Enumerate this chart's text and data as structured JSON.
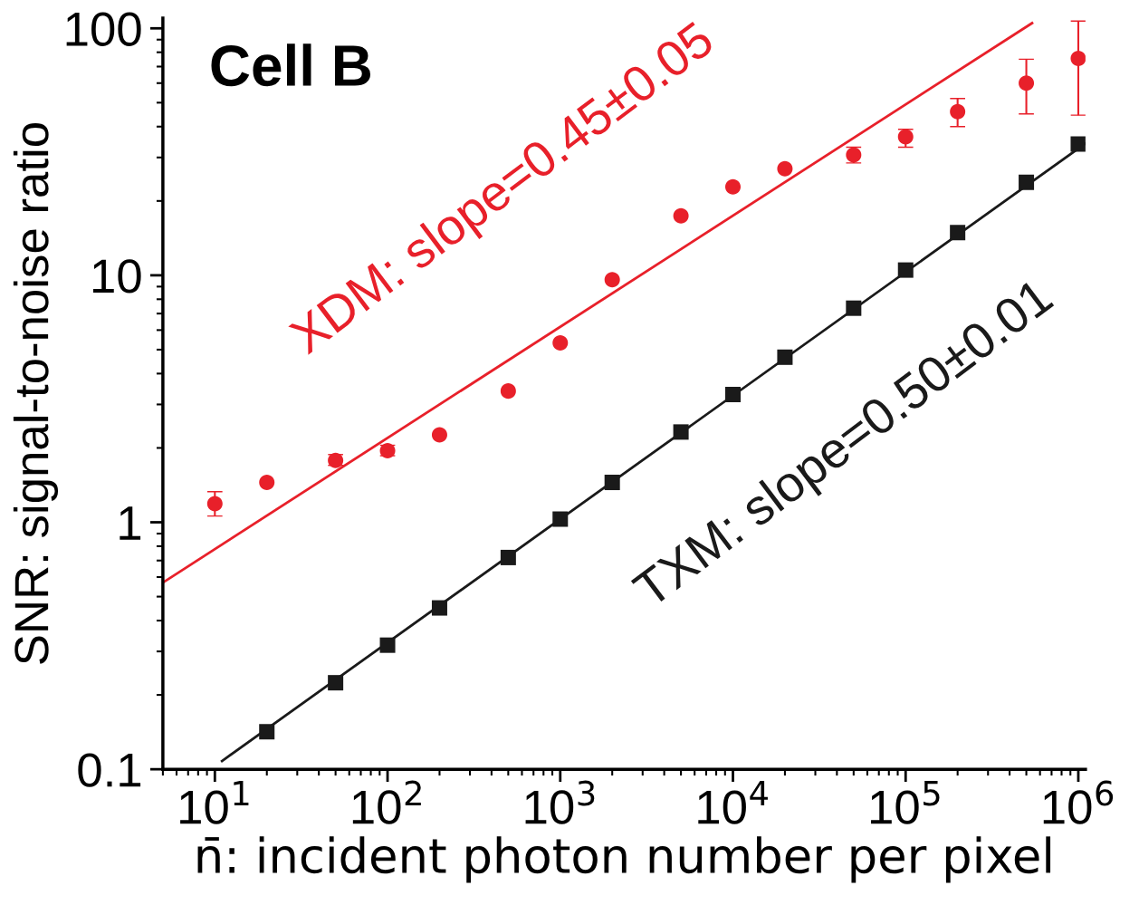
{
  "chart_data": {
    "type": "scatter",
    "log": "xy",
    "xlabel": "n̄: incident photon number per pixel",
    "ylabel": "SNR: signal-to-noise ratio",
    "xlim": [
      5,
      1100000
    ],
    "ylim": [
      0.1,
      110
    ],
    "xticks": [
      {
        "value": 10,
        "label": "10$^{1}$"
      },
      {
        "value": 100,
        "label": "10$^{2}$"
      },
      {
        "value": 1000,
        "label": "10$^{3}$"
      },
      {
        "value": 10000,
        "label": "10$^{4}$"
      },
      {
        "value": 100000,
        "label": "10$^{5}$"
      },
      {
        "value": 1000000,
        "label": "10$^{6}$"
      }
    ],
    "yticks": [
      0.1,
      1,
      10,
      100
    ],
    "annotations": [
      "Cell B",
      "XDM: slope=0.45±0.05",
      "TXM: slope=0.50±0.01"
    ],
    "series": [
      {
        "type": "line",
        "color": "#e8202a",
        "marker": "none",
        "line_style": "solid",
        "x": [
          5,
          540000
        ],
        "values": [
          0.57,
          105
        ]
      },
      {
        "type": "line",
        "color": "#1a1a1a",
        "marker": "none",
        "line_style": "solid",
        "x": [
          11,
          1100000
        ],
        "values": [
          0.108,
          34.2
        ]
      },
      {
        "color": "#e8202a",
        "marker": "circle",
        "x": [
          10,
          20,
          50,
          100,
          200,
          500,
          1000,
          2000,
          5000,
          10000,
          20000,
          50000,
          100000,
          200000,
          500000,
          1000000
        ],
        "values": [
          1.19,
          1.45,
          1.78,
          1.95,
          2.26,
          3.4,
          5.33,
          9.6,
          17.4,
          22.8,
          27.0,
          30.7,
          36.4,
          46,
          60,
          75.5
        ],
        "errors": [
          [
            1.06,
            1.33
          ],
          null,
          [
            1.7,
            1.88
          ],
          [
            1.86,
            2.05
          ],
          null,
          null,
          null,
          null,
          null,
          null,
          null,
          [
            28.5,
            33
          ],
          [
            33,
            39
          ],
          [
            40,
            52
          ],
          [
            45,
            75
          ],
          [
            44.5,
            107
          ]
        ]
      },
      {
        "color": "#1a1a1a",
        "marker": "square",
        "x": [
          20,
          50,
          100,
          200,
          500,
          1000,
          2000,
          5000,
          10000,
          20000,
          50000,
          100000,
          200000,
          500000,
          1000000
        ],
        "values": [
          0.142,
          0.224,
          0.318,
          0.45,
          0.72,
          1.03,
          1.45,
          2.32,
          3.29,
          4.66,
          7.36,
          10.5,
          14.9,
          23.8,
          34
        ]
      }
    ]
  }
}
